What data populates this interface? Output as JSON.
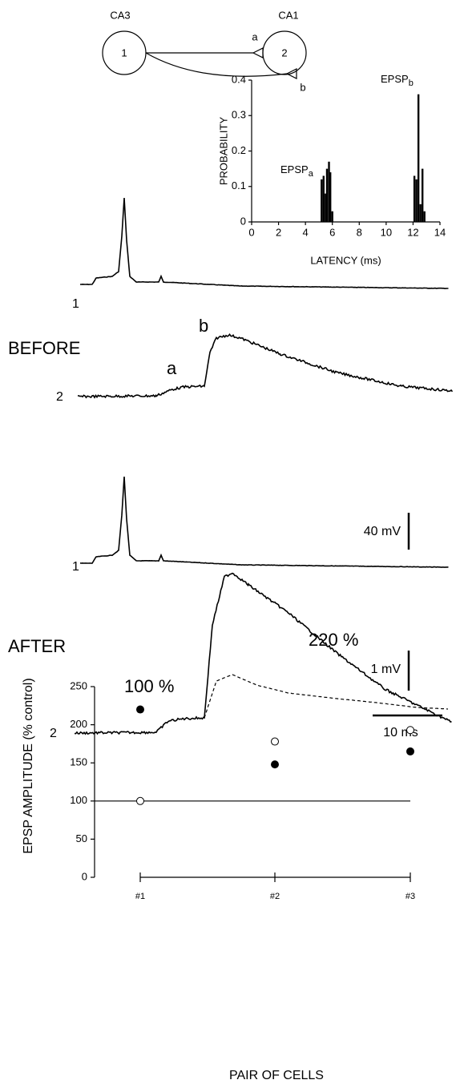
{
  "diagram": {
    "cells": [
      {
        "region": "CA3",
        "label": "1"
      },
      {
        "region": "CA1",
        "label": "2"
      }
    ],
    "synapses": [
      "a",
      "b"
    ]
  },
  "traces": {
    "conditions": [
      "BEFORE",
      "AFTER"
    ],
    "cell_labels": [
      "1",
      "2",
      "1",
      "2"
    ],
    "peak_labels": [
      "a",
      "b"
    ],
    "percent_labels": [
      "100 %",
      "220 %"
    ],
    "scale_bars": [
      "40 mV",
      "1 mV",
      "10 ms"
    ]
  },
  "chart_data": [
    {
      "type": "bar",
      "xlabel": "LATENCY (ms)",
      "ylabel": "PROBABILITY",
      "annotations": [
        {
          "text": "EPSP",
          "sub": "a"
        },
        {
          "text": "EPSP",
          "sub": "b"
        }
      ],
      "x": [
        5.2,
        5.35,
        5.5,
        5.6,
        5.75,
        5.85,
        6.0,
        12.1,
        12.25,
        12.4,
        12.55,
        12.7,
        12.85
      ],
      "values": [
        0.12,
        0.13,
        0.08,
        0.15,
        0.17,
        0.14,
        0.03,
        0.13,
        0.12,
        0.36,
        0.05,
        0.15,
        0.03
      ],
      "color": "#000",
      "xlim": [
        0,
        14
      ],
      "xticks": [
        0,
        2,
        4,
        6,
        8,
        10,
        12,
        14
      ],
      "ylim": [
        0,
        0.4
      ],
      "yticks": [
        0,
        0.1,
        0.2,
        0.3,
        0.4
      ]
    },
    {
      "type": "scatter",
      "xlabel": "PAIR OF CELLS",
      "ylabel": "EPSP AMPLITUDE (% control)",
      "categories": [
        "#1",
        "#2",
        "#3"
      ],
      "series": [
        {
          "color": "#000",
          "filled": true,
          "values": [
            220,
            148,
            165
          ]
        },
        {
          "color": "#000",
          "filled": false,
          "values": [
            100,
            178,
            193
          ]
        }
      ],
      "reference_line": 100,
      "ylim": [
        0,
        250
      ],
      "yticks": [
        0,
        50,
        100,
        150,
        200,
        250
      ]
    }
  ]
}
